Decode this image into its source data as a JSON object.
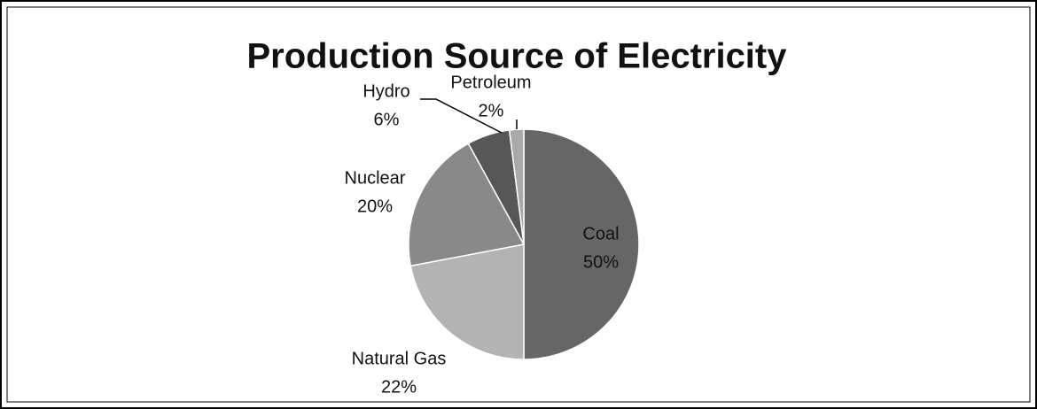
{
  "chart_data": {
    "type": "pie",
    "title": "Production Source of Electricity",
    "categories": [
      "Coal",
      "Natural Gas",
      "Nuclear",
      "Hydro",
      "Petroleum"
    ],
    "values": [
      50,
      22,
      20,
      6,
      2
    ],
    "value_labels": [
      "50%",
      "22%",
      "20%",
      "6%",
      "2%"
    ],
    "colors": [
      "#666666",
      "#b3b3b3",
      "#898989",
      "#575757",
      "#a9a9a9"
    ]
  }
}
